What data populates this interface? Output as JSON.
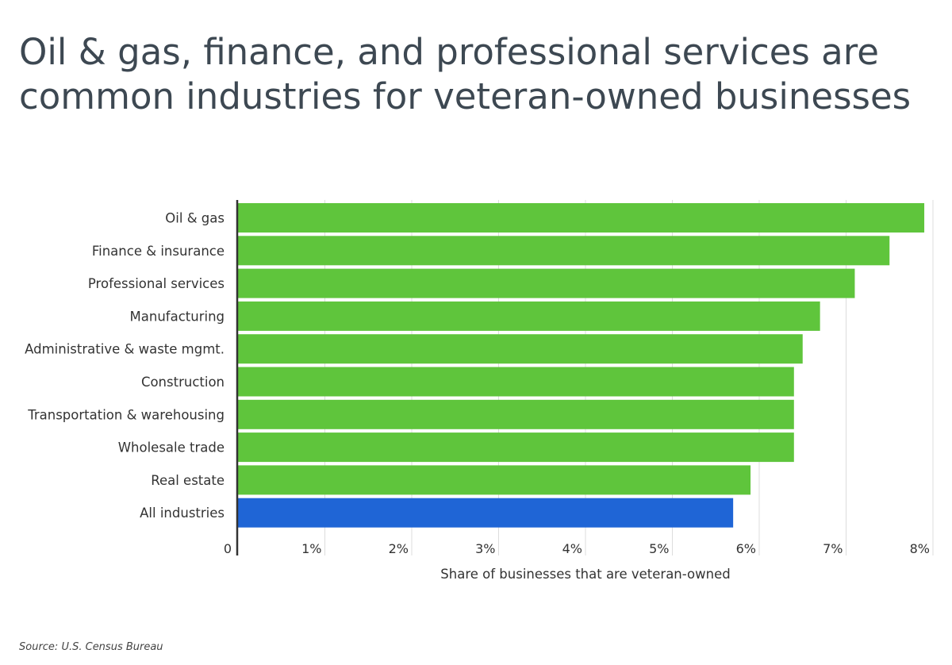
{
  "title": "Oil & gas, finance, and professional services are common industries for veteran-owned businesses",
  "source": "Source: U.S. Census Bureau",
  "chart_data": {
    "type": "bar",
    "orientation": "horizontal",
    "categories": [
      "Oil & gas",
      "Finance & insurance",
      "Professional services",
      "Manufacturing",
      "Administrative & waste mgmt.",
      "Construction",
      "Transportation & warehousing",
      "Wholesale trade",
      "Real estate",
      "All industries"
    ],
    "values": [
      7.9,
      7.5,
      7.1,
      6.7,
      6.5,
      6.4,
      6.4,
      6.4,
      5.9,
      5.7
    ],
    "highlight_category": "All industries",
    "colors": {
      "default": "#5fc53c",
      "highlight": "#1f65d6"
    },
    "xlabel": "Share of businesses that are veteran-owned",
    "ylabel": "",
    "xlim": [
      0,
      8
    ],
    "xticks": [
      "0",
      "1%",
      "2%",
      "3%",
      "4%",
      "5%",
      "6%",
      "7%",
      "8%"
    ],
    "grid": true
  }
}
